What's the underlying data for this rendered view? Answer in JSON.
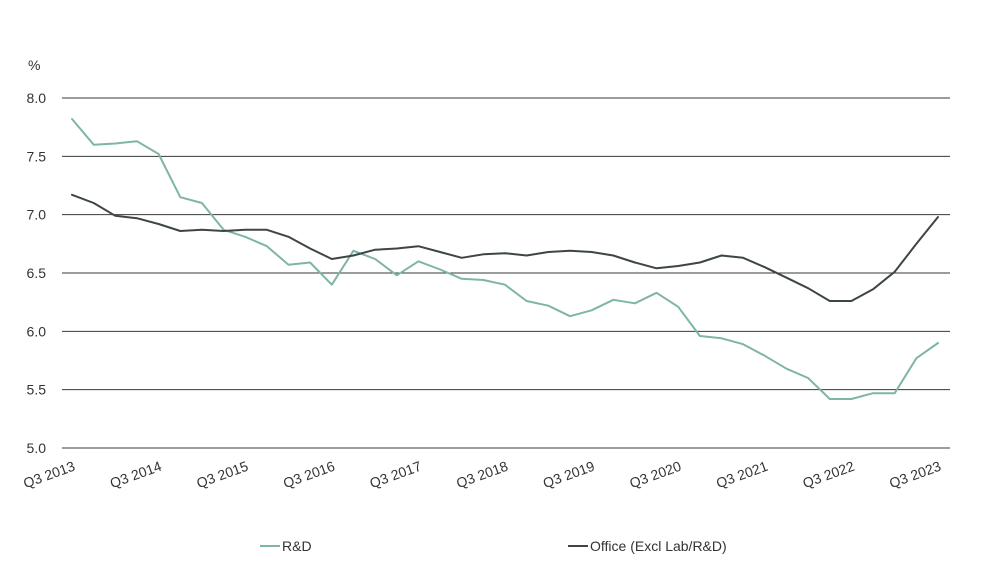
{
  "chart_data": {
    "type": "line",
    "ylabel": "%",
    "ylim": [
      5.0,
      8.0
    ],
    "yticks": [
      "8.0",
      "7.5",
      "7.0",
      "6.5",
      "6.0",
      "5.5",
      "5.0"
    ],
    "xtick_labels": [
      "Q3 2013",
      "Q3 2014",
      "Q3 2015",
      "Q3 2016",
      "Q3 2017",
      "Q3 2018",
      "Q3 2019",
      "Q3 2020",
      "Q3 2021",
      "Q3 2022",
      "Q3 2023"
    ],
    "grid": true,
    "legend_position": "bottom",
    "series": [
      {
        "name": "R&D",
        "color": "#7fb5a5",
        "values": [
          7.82,
          7.6,
          7.61,
          7.63,
          7.52,
          7.15,
          7.1,
          6.87,
          6.81,
          6.73,
          6.57,
          6.59,
          6.4,
          6.69,
          6.62,
          6.48,
          6.6,
          6.53,
          6.45,
          6.44,
          6.4,
          6.26,
          6.22,
          6.13,
          6.18,
          6.27,
          6.24,
          6.33,
          6.21,
          5.96,
          5.94,
          5.89,
          5.79,
          5.68,
          5.6,
          5.42,
          5.42,
          5.47,
          5.47,
          5.77,
          5.9
        ]
      },
      {
        "name": "Office (Excl Lab/R&D)",
        "color": "#3d4548",
        "values": [
          7.17,
          7.1,
          6.99,
          6.97,
          6.92,
          6.86,
          6.87,
          6.86,
          6.87,
          6.87,
          6.81,
          6.71,
          6.62,
          6.65,
          6.7,
          6.71,
          6.73,
          6.68,
          6.63,
          6.66,
          6.67,
          6.65,
          6.68,
          6.69,
          6.68,
          6.65,
          6.59,
          6.54,
          6.56,
          6.59,
          6.65,
          6.63,
          6.55,
          6.46,
          6.37,
          6.26,
          6.26,
          6.36,
          6.51,
          6.75,
          6.98
        ]
      }
    ]
  }
}
